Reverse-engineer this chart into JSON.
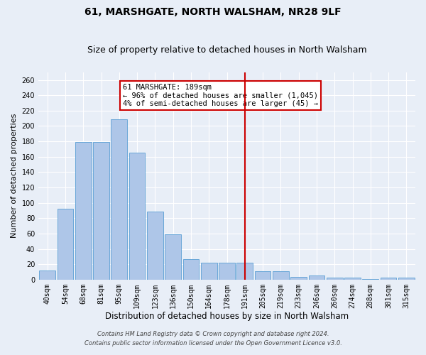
{
  "title": "61, MARSHGATE, NORTH WALSHAM, NR28 9LF",
  "subtitle": "Size of property relative to detached houses in North Walsham",
  "xlabel": "Distribution of detached houses by size in North Walsham",
  "ylabel": "Number of detached properties",
  "categories": [
    "40sqm",
    "54sqm",
    "68sqm",
    "81sqm",
    "95sqm",
    "109sqm",
    "123sqm",
    "136sqm",
    "150sqm",
    "164sqm",
    "178sqm",
    "191sqm",
    "205sqm",
    "219sqm",
    "233sqm",
    "246sqm",
    "260sqm",
    "274sqm",
    "288sqm",
    "301sqm",
    "315sqm"
  ],
  "values": [
    12,
    92,
    179,
    179,
    209,
    165,
    89,
    59,
    27,
    22,
    22,
    22,
    11,
    11,
    4,
    5,
    3,
    3,
    1,
    3,
    3
  ],
  "bar_color": "#aec6e8",
  "bar_edge_color": "#5a9fd4",
  "highlight_index": 11,
  "highlight_line_color": "#cc0000",
  "legend_text_line1": "61 MARSHGATE: 189sqm",
  "legend_text_line2": "← 96% of detached houses are smaller (1,045)",
  "legend_text_line3": "4% of semi-detached houses are larger (45) →",
  "legend_box_color": "#cc0000",
  "ylim": [
    0,
    270
  ],
  "yticks": [
    0,
    20,
    40,
    60,
    80,
    100,
    120,
    140,
    160,
    180,
    200,
    220,
    240,
    260
  ],
  "footnote1": "Contains HM Land Registry data © Crown copyright and database right 2024.",
  "footnote2": "Contains public sector information licensed under the Open Government Licence v3.0.",
  "bg_color": "#e8eef7",
  "grid_color": "#ffffff",
  "title_fontsize": 10,
  "subtitle_fontsize": 9,
  "tick_fontsize": 7,
  "ylabel_fontsize": 8,
  "xlabel_fontsize": 8.5,
  "footnote_fontsize": 6,
  "annotation_fontsize": 7.5
}
